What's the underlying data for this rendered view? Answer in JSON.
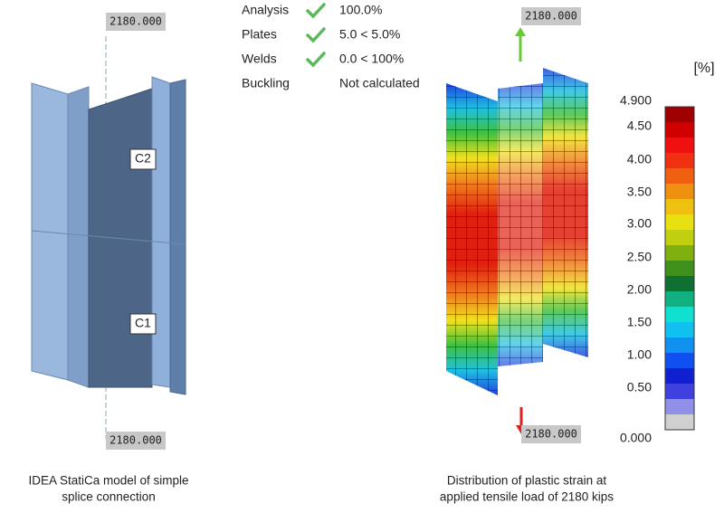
{
  "left_model": {
    "load_top": "2180.000",
    "load_bottom": "2180.000",
    "member_labels": [
      "C2",
      "C1"
    ],
    "caption": [
      "IDEA StatiCa model of simple",
      "splice connection"
    ]
  },
  "checks": [
    {
      "name": "Analysis",
      "passed": true,
      "value": "100.0%"
    },
    {
      "name": "Plates",
      "passed": true,
      "value": "5.0 < 5.0%"
    },
    {
      "name": "Welds",
      "passed": true,
      "value": "0.0 < 100%"
    },
    {
      "name": "Buckling",
      "passed": false,
      "value": "Not calculated"
    }
  ],
  "right_model": {
    "load_top": "2180.000",
    "load_bottom": "2180.000",
    "caption": [
      "Distribution of plastic strain at",
      "applied tensile load of 2180 kips"
    ]
  },
  "legend": {
    "unit": "[%]",
    "ticks": [
      "4.900",
      "4.50",
      "4.00",
      "3.50",
      "3.00",
      "2.50",
      "2.00",
      "1.50",
      "1.00",
      "0.50",
      "0.000"
    ]
  }
}
